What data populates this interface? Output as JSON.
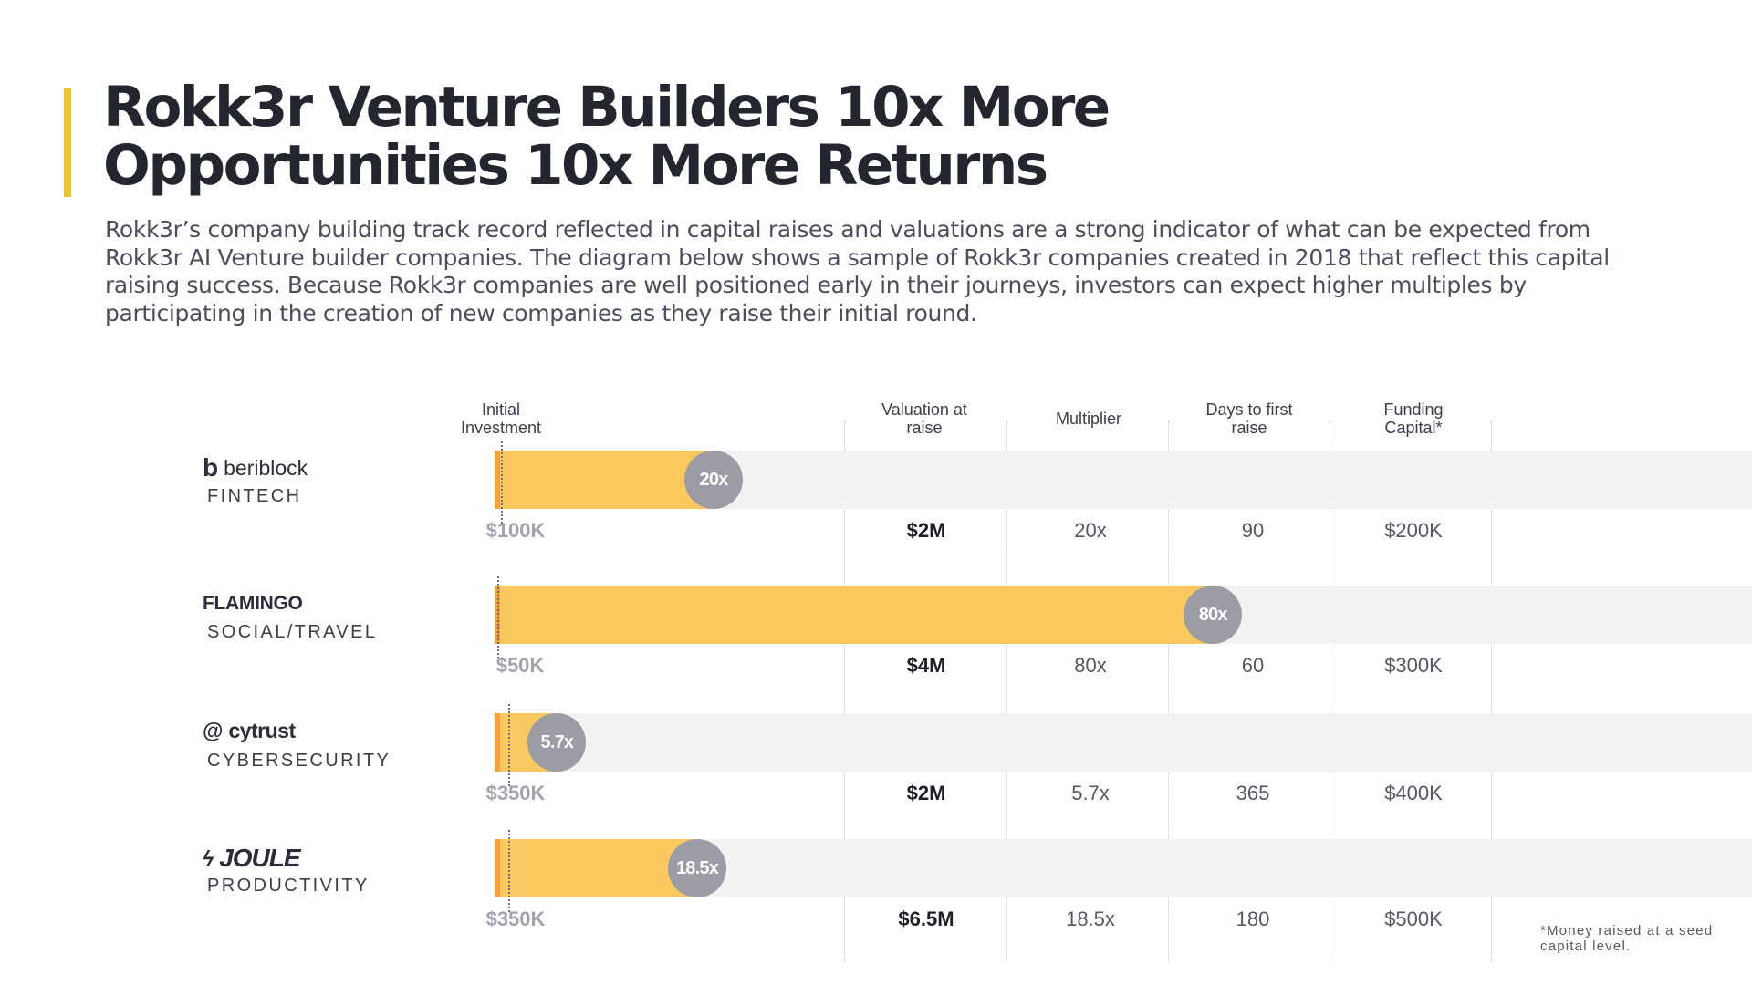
{
  "header": {
    "title": "Rokk3r Venture Builders 10x More\nOpportunities 10x More Returns",
    "subtitle": "Rokk3r’s company building track record reflected in capital raises and valuations are a strong indicator of what can be expected from Rokk3r AI Venture builder companies. The diagram below shows a sample of Rokk3r companies created in 2018 that reflect this capital raising success. Because Rokk3r companies are well positioned early in their journeys, investors can expect higher multiples by participating in the creation of new companies as they raise their initial round."
  },
  "columns": {
    "initial": "Initial\nInvestment",
    "valuation": "Valuation at\nraise",
    "multiplier": "Multiplier",
    "days": "Days to first\nraise",
    "funding": "Funding\nCapital*"
  },
  "colors": {
    "accent": "#f2c230",
    "bar_fill": "#f9c960",
    "bar_cap": "#f4a23f",
    "track": "#f2f2f3",
    "multiplier_circle": "#9c9ca6"
  },
  "chart_data": {
    "type": "bar",
    "orientation": "horizontal",
    "categories": [
      "beriblock",
      "FLAMINGO",
      "cytrust",
      "JOULE"
    ],
    "sectors": [
      "FINTECH",
      "SOCIAL/TRAVEL",
      "CYBERSECURITY",
      "PRODUCTIVITY"
    ],
    "logo_icons": [
      "b-mark-icon",
      "none",
      "at-sign-icon",
      "lightning-bolt-icon"
    ],
    "initial_investment_labels": [
      "$100K",
      "$50K",
      "$350K",
      "$350K"
    ],
    "initial_investment": [
      100000,
      50000,
      350000,
      350000
    ],
    "valuation_labels": [
      "$2M",
      "$4M",
      "$2M",
      "$6.5M"
    ],
    "valuation": [
      2000000,
      4000000,
      2000000,
      6500000
    ],
    "multiplier_labels": [
      "20x",
      "80x",
      "5.7x",
      "18.5x"
    ],
    "multiplier": [
      20,
      80,
      5.7,
      18.5
    ],
    "days_to_first_raise": [
      "90",
      "60",
      "365",
      "180"
    ],
    "funding_capital_labels": [
      "$200K",
      "$300K",
      "$400K",
      "$500K"
    ],
    "funding_capital": [
      200000,
      300000,
      400000,
      500000
    ]
  },
  "footnote": "*Money raised at a seed capital level."
}
